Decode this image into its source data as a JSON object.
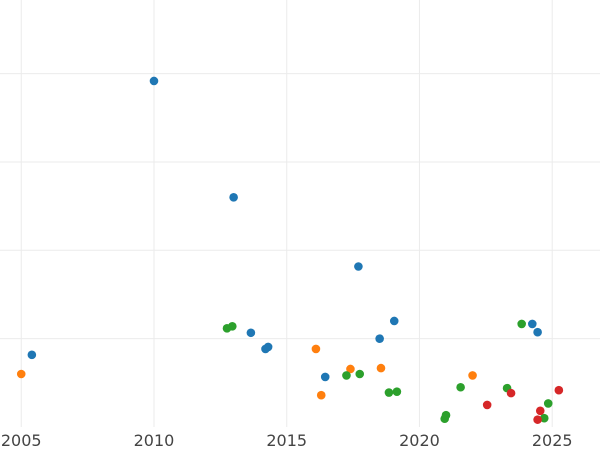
{
  "chart_data": {
    "type": "scatter",
    "title": "",
    "xlabel": "",
    "ylabel": "",
    "xlim": [
      2004.2,
      2026.8
    ],
    "ylim": [
      0,
      14.5
    ],
    "grid": true,
    "x_ticks": [
      2005,
      2010,
      2015,
      2020,
      2025
    ],
    "x_tick_labels": [
      "2005",
      "2010",
      "2015",
      "2020",
      "2025"
    ],
    "y_gridlines": [
      3,
      6,
      9,
      12
    ],
    "colors": {
      "blue": "#1f77b4",
      "orange": "#ff7f0e",
      "green": "#2ca02c",
      "red": "#d62728"
    },
    "series": [
      {
        "color": "#1f77b4",
        "points": [
          {
            "x": 2005.4,
            "y": 2.45
          },
          {
            "x": 2010.0,
            "y": 11.75
          },
          {
            "x": 2013.0,
            "y": 7.8
          },
          {
            "x": 2013.65,
            "y": 3.2
          },
          {
            "x": 2014.2,
            "y": 2.65
          },
          {
            "x": 2014.3,
            "y": 2.72
          },
          {
            "x": 2016.45,
            "y": 1.7
          },
          {
            "x": 2017.7,
            "y": 5.45
          },
          {
            "x": 2018.5,
            "y": 3.0
          },
          {
            "x": 2019.05,
            "y": 3.6
          },
          {
            "x": 2024.25,
            "y": 3.5
          },
          {
            "x": 2024.45,
            "y": 3.22
          }
        ]
      },
      {
        "color": "#ff7f0e",
        "points": [
          {
            "x": 2005.0,
            "y": 1.8
          },
          {
            "x": 2016.1,
            "y": 2.65
          },
          {
            "x": 2016.3,
            "y": 1.08
          },
          {
            "x": 2017.4,
            "y": 1.97
          },
          {
            "x": 2018.55,
            "y": 2.0
          },
          {
            "x": 2022.0,
            "y": 1.75
          }
        ]
      },
      {
        "color": "#2ca02c",
        "points": [
          {
            "x": 2012.75,
            "y": 3.35
          },
          {
            "x": 2012.95,
            "y": 3.42
          },
          {
            "x": 2017.25,
            "y": 1.75
          },
          {
            "x": 2017.75,
            "y": 1.8
          },
          {
            "x": 2018.85,
            "y": 1.17
          },
          {
            "x": 2019.15,
            "y": 1.2
          },
          {
            "x": 2020.95,
            "y": 0.28
          },
          {
            "x": 2021.0,
            "y": 0.4
          },
          {
            "x": 2021.55,
            "y": 1.35
          },
          {
            "x": 2023.3,
            "y": 1.32
          },
          {
            "x": 2023.85,
            "y": 3.5
          },
          {
            "x": 2024.7,
            "y": 0.3
          },
          {
            "x": 2024.85,
            "y": 0.8
          }
        ]
      },
      {
        "color": "#d62728",
        "points": [
          {
            "x": 2022.55,
            "y": 0.75
          },
          {
            "x": 2023.45,
            "y": 1.15
          },
          {
            "x": 2024.45,
            "y": 0.25
          },
          {
            "x": 2024.55,
            "y": 0.55
          },
          {
            "x": 2025.25,
            "y": 1.25
          }
        ]
      }
    ]
  }
}
